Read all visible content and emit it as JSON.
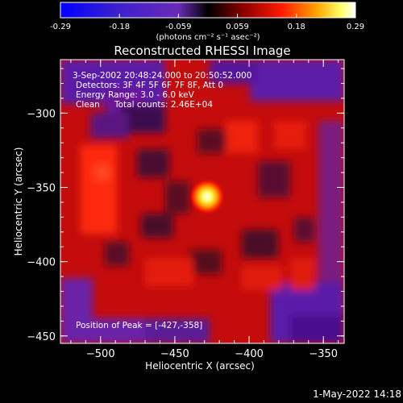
{
  "colorbar": {
    "ticks": [
      "-0.29",
      "-0.18",
      "-0.059",
      "0.059",
      "0.18",
      "0.29"
    ],
    "units": "(photons cm⁻² s⁻¹ asec⁻²)"
  },
  "title": "Reconstructed RHESSI Image",
  "annotations": {
    "time": "3-Sep-2002 20:48:24.000 to 20:50:52.000",
    "detectors": "Detectors: 3F 4F 5F 6F 7F 8F, Att 0",
    "energy": "Energy Range: 3.0 - 6.0 keV",
    "method": "Clean",
    "counts": "Total counts: 2.46E+04",
    "peak": "Position of Peak = [-427,-358]"
  },
  "axes": {
    "xlabel": "Heliocentric X (arcsec)",
    "ylabel": "Heliocentric Y (arcsec)",
    "xticks": [
      "-500",
      "-450",
      "-400",
      "-350"
    ],
    "yticks": [
      "-300",
      "-350",
      "-400",
      "-450"
    ],
    "xlim": [
      -527,
      -336
    ],
    "ylim": [
      -455,
      -264
    ]
  },
  "timestamp": "1-May-2022 14:18",
  "colormap": {
    "stops": [
      "#0000ff",
      "#3a1fd0",
      "#6a2ab8",
      "#000000",
      "#8a0000",
      "#ff1a00",
      "#ffa500",
      "#ffff66",
      "#ffffff"
    ]
  },
  "image": {
    "peak": [
      -427,
      -358
    ],
    "background": "#c80c0c"
  }
}
